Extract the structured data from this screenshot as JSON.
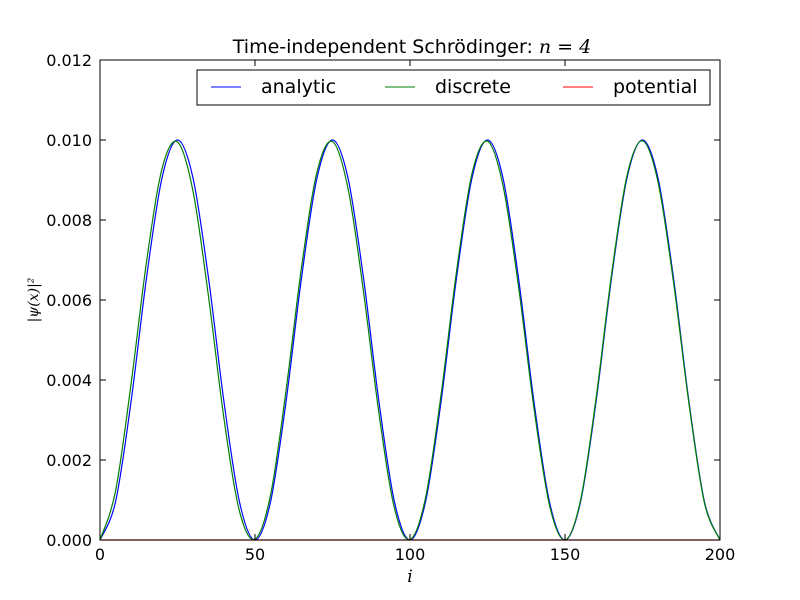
{
  "chart_data": {
    "type": "line",
    "title": "Time-independent Schrödinger: ",
    "title_math": "n = 4",
    "xlabel": "i",
    "ylabel": "|ψ(x)|²",
    "xlim": [
      0,
      200
    ],
    "ylim": [
      0,
      0.012
    ],
    "xticks": [
      "0",
      "50",
      "100",
      "150",
      "200"
    ],
    "yticks": [
      "0.000",
      "0.002",
      "0.004",
      "0.006",
      "0.008",
      "0.010",
      "0.012"
    ],
    "grid": false,
    "legend_position": "top-right",
    "legend_columns": 3,
    "series": [
      {
        "name": "analytic",
        "color": "#0000ff",
        "x": [
          0,
          5,
          10,
          15,
          20,
          25,
          30,
          35,
          40,
          45,
          50,
          55,
          60,
          65,
          70,
          75,
          80,
          85,
          90,
          95,
          100,
          105,
          110,
          115,
          120,
          125,
          130,
          135,
          140,
          145,
          150,
          155,
          160,
          165,
          170,
          175,
          180,
          185,
          190,
          195,
          200
        ],
        "y": [
          0,
          0.00095,
          0.00345,
          0.00655,
          0.00905,
          0.01,
          0.00905,
          0.00655,
          0.00345,
          0.00095,
          0,
          0.00095,
          0.00345,
          0.00655,
          0.00905,
          0.01,
          0.00905,
          0.00655,
          0.00345,
          0.00095,
          0,
          0.00095,
          0.00345,
          0.00655,
          0.00905,
          0.01,
          0.00905,
          0.00655,
          0.00345,
          0.00095,
          0,
          0.00095,
          0.00345,
          0.00655,
          0.00905,
          0.01,
          0.00905,
          0.00655,
          0.00345,
          0.00095,
          0
        ]
      },
      {
        "name": "discrete",
        "color": "#008000",
        "x": [
          0,
          5,
          10,
          15,
          20,
          25,
          30,
          35,
          40,
          45,
          50,
          55,
          60,
          65,
          70,
          75,
          80,
          85,
          90,
          95,
          100,
          105,
          110,
          115,
          120,
          125,
          130,
          135,
          140,
          145,
          150,
          155,
          160,
          165,
          170,
          175,
          180,
          185,
          190,
          195,
          200
        ],
        "y": [
          0,
          0.00122,
          0.00389,
          0.00695,
          0.00928,
          0.00995,
          0.00872,
          0.00609,
          0.00303,
          0.00072,
          2e-05,
          0.00112,
          0.00373,
          0.00681,
          0.0092,
          0.00996,
          0.00879,
          0.00621,
          0.00316,
          0.00079,
          1e-05,
          0.00105,
          0.00362,
          0.00671,
          0.00916,
          0.00997,
          0.00886,
          0.00634,
          0.00329,
          0.00087,
          0,
          0.00099,
          0.00353,
          0.00663,
          0.00911,
          0.00998,
          0.00895,
          0.00645,
          0.0034,
          0.00092,
          0
        ]
      },
      {
        "name": "potential",
        "color": "#ff0000",
        "x": [
          0,
          200
        ],
        "y": [
          0,
          0
        ]
      }
    ]
  }
}
